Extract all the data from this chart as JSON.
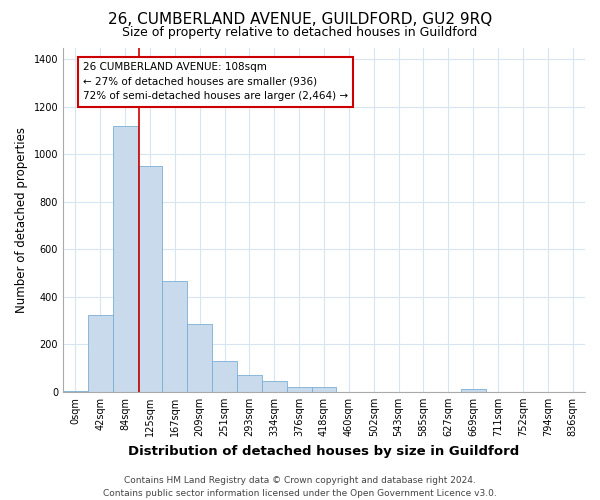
{
  "title": "26, CUMBERLAND AVENUE, GUILDFORD, GU2 9RQ",
  "subtitle": "Size of property relative to detached houses in Guildford",
  "xlabel": "Distribution of detached houses by size in Guildford",
  "ylabel": "Number of detached properties",
  "bin_labels": [
    "0sqm",
    "42sqm",
    "84sqm",
    "125sqm",
    "167sqm",
    "209sqm",
    "251sqm",
    "293sqm",
    "334sqm",
    "376sqm",
    "418sqm",
    "460sqm",
    "502sqm",
    "543sqm",
    "585sqm",
    "627sqm",
    "669sqm",
    "711sqm",
    "752sqm",
    "794sqm",
    "836sqm"
  ],
  "bar_values": [
    5,
    325,
    1120,
    950,
    465,
    285,
    130,
    70,
    45,
    20,
    20,
    0,
    0,
    0,
    0,
    0,
    10,
    0,
    0,
    0,
    0
  ],
  "bar_color": "#c8daec",
  "bar_edge_color": "#7bafd4",
  "vline_x": 2.55,
  "vline_color": "#cc0000",
  "annotation_text": "26 CUMBERLAND AVENUE: 108sqm\n← 27% of detached houses are smaller (936)\n72% of semi-detached houses are larger (2,464) →",
  "annotation_box_color": "#ffffff",
  "annotation_box_edge": "#cc0000",
  "ylim": [
    0,
    1450
  ],
  "yticks": [
    0,
    200,
    400,
    600,
    800,
    1000,
    1200,
    1400
  ],
  "footnote": "Contains HM Land Registry data © Crown copyright and database right 2024.\nContains public sector information licensed under the Open Government Licence v3.0.",
  "bg_color": "#ffffff",
  "plot_bg_color": "#ffffff",
  "grid_color": "#d8e4f0",
  "title_fontsize": 11,
  "subtitle_fontsize": 9,
  "xlabel_fontsize": 9.5,
  "ylabel_fontsize": 8.5,
  "footnote_fontsize": 6.5,
  "tick_fontsize": 7
}
